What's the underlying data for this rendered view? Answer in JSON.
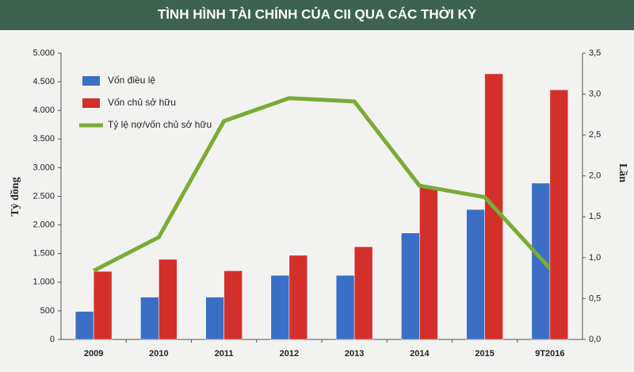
{
  "chart_data": {
    "type": "bar-line",
    "title": "TÌNH HÌNH TÀI CHÍNH CỦA CII QUA CÁC THỜI KỲ",
    "y_label": "Tỷ đồng",
    "y2_label": "Lần",
    "categories": [
      "2009",
      "2010",
      "2011",
      "2012",
      "2013",
      "2014",
      "2015",
      "9T2016"
    ],
    "series": [
      {
        "name": "Vốn điều lệ",
        "type": "bar",
        "color": "#3b6fc6",
        "values": [
          490,
          740,
          740,
          1120,
          1120,
          1860,
          2270,
          2730
        ]
      },
      {
        "name": "Vốn chủ sở hữu",
        "type": "bar",
        "color": "#d3302c",
        "values": [
          1190,
          1400,
          1200,
          1470,
          1620,
          2670,
          4640,
          4360
        ]
      },
      {
        "name": "Tỷ lệ nợ/vốn chủ sở hữu",
        "type": "line",
        "axis": "y2",
        "color": "#7aab35",
        "values": [
          0.84,
          1.25,
          2.67,
          2.95,
          2.91,
          1.88,
          1.74,
          0.87
        ]
      }
    ],
    "ylim": [
      0,
      5000
    ],
    "yticks": [
      {
        "value": 0,
        "label": "0"
      },
      {
        "value": 500,
        "label": "500"
      },
      {
        "value": 1000,
        "label": "1.000"
      },
      {
        "value": 1500,
        "label": "1.500"
      },
      {
        "value": 2000,
        "label": "2.000"
      },
      {
        "value": 2500,
        "label": "2.500"
      },
      {
        "value": 3000,
        "label": "3.000"
      },
      {
        "value": 3500,
        "label": "3.500"
      },
      {
        "value": 4000,
        "label": "4.000"
      },
      {
        "value": 4500,
        "label": "4.500"
      },
      {
        "value": 5000,
        "label": "5.000"
      }
    ],
    "y2lim": [
      0,
      3.5
    ],
    "y2ticks": [
      {
        "value": 0,
        "label": "0,0"
      },
      {
        "value": 0.5,
        "label": "0,5"
      },
      {
        "value": 1,
        "label": "1,0"
      },
      {
        "value": 1.5,
        "label": "1,5"
      },
      {
        "value": 2,
        "label": "2,0"
      },
      {
        "value": 2.5,
        "label": "2,5"
      },
      {
        "value": 3,
        "label": "3,0"
      },
      {
        "value": 3.5,
        "label": "3,5"
      }
    ],
    "legend": "top-left"
  }
}
